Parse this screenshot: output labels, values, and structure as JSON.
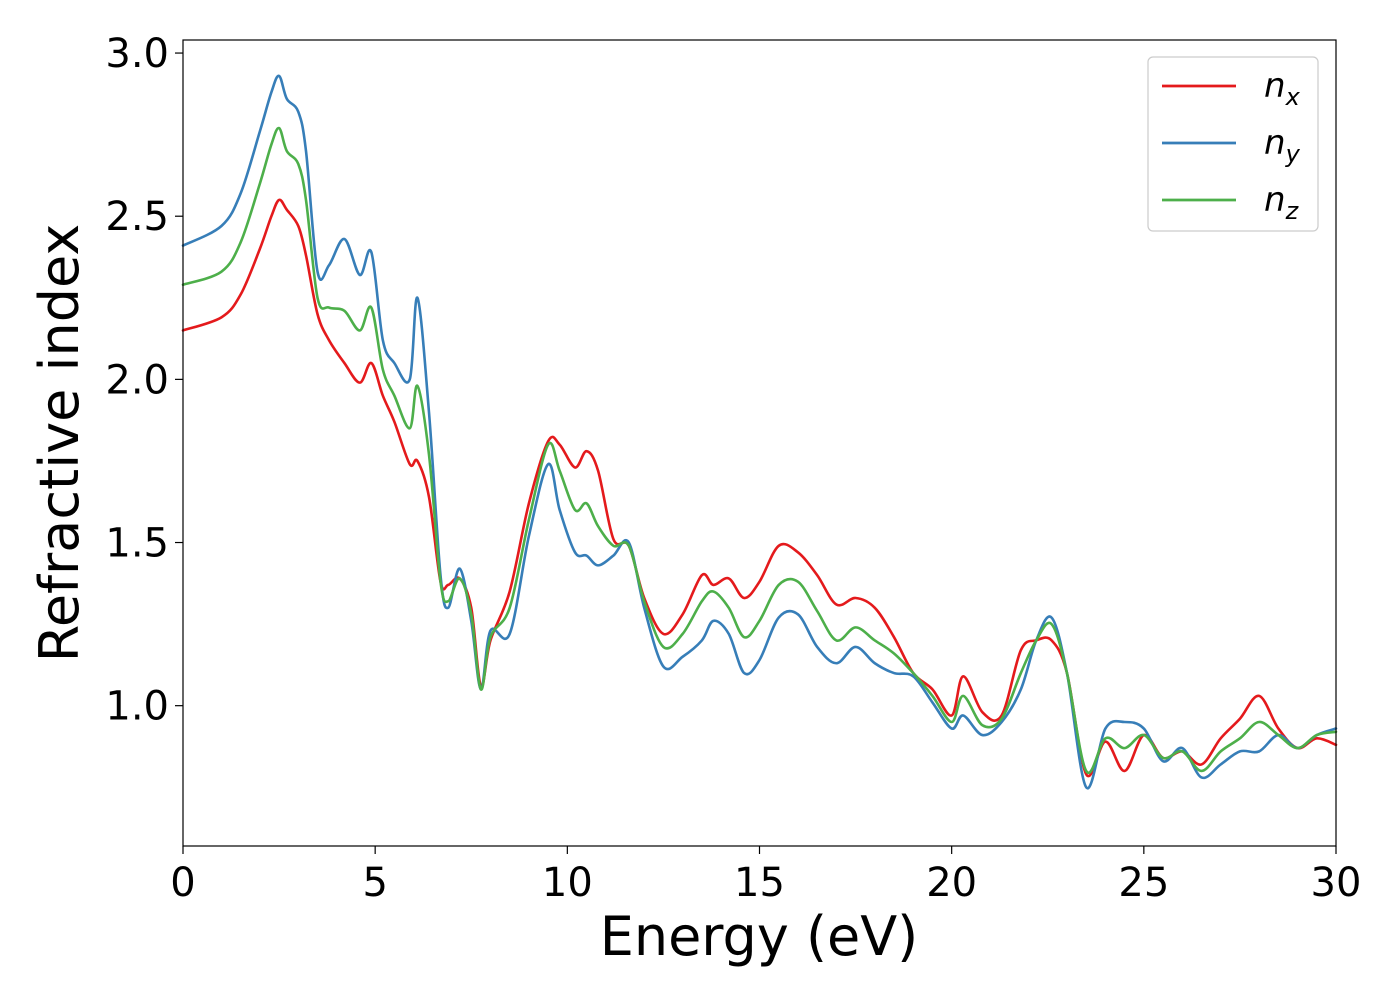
{
  "chart_data": {
    "type": "line",
    "title": "",
    "xlabel": "Energy (eV)",
    "ylabel": "Refractive index",
    "xlim": [
      0,
      30
    ],
    "ylim": [
      0.57,
      3.04
    ],
    "xticks": [
      "0",
      "5",
      "10",
      "15",
      "20",
      "25",
      "30"
    ],
    "yticks": [
      "1.0",
      "1.5",
      "2.0",
      "2.5",
      "3.0"
    ],
    "grid": false,
    "legend_position": "top-right",
    "series": [
      {
        "name": "n",
        "subscript": "x",
        "color": "#e41a1c",
        "x": [
          0,
          1,
          1.5,
          2,
          2.3,
          2.5,
          2.7,
          3.0,
          3.2,
          3.5,
          3.8,
          4.2,
          4.6,
          4.9,
          5.2,
          5.5,
          5.9,
          6.1,
          6.4,
          6.7,
          6.9,
          7.2,
          7.5,
          7.75,
          8.0,
          8.5,
          9.0,
          9.5,
          9.8,
          10.2,
          10.5,
          10.8,
          11.2,
          11.6,
          12.0,
          12.5,
          13.0,
          13.5,
          13.8,
          14.2,
          14.6,
          15.0,
          15.5,
          16.0,
          16.5,
          17.0,
          17.5,
          18.0,
          18.5,
          19.0,
          19.5,
          20.0,
          20.3,
          20.8,
          21.3,
          21.8,
          22.2,
          22.6,
          23.0,
          23.5,
          24.0,
          24.5,
          25.0,
          25.5,
          26.0,
          26.5,
          27.0,
          27.5,
          28.0,
          28.5,
          29.0,
          29.5,
          30.0
        ],
        "y": [
          2.15,
          2.19,
          2.26,
          2.4,
          2.5,
          2.55,
          2.52,
          2.47,
          2.38,
          2.2,
          2.12,
          2.05,
          1.99,
          2.05,
          1.95,
          1.87,
          1.74,
          1.75,
          1.64,
          1.38,
          1.37,
          1.39,
          1.3,
          1.06,
          1.2,
          1.35,
          1.62,
          1.81,
          1.8,
          1.73,
          1.78,
          1.72,
          1.51,
          1.49,
          1.33,
          1.22,
          1.28,
          1.4,
          1.37,
          1.39,
          1.33,
          1.38,
          1.49,
          1.47,
          1.4,
          1.31,
          1.33,
          1.3,
          1.21,
          1.1,
          1.05,
          0.97,
          1.09,
          0.98,
          0.97,
          1.17,
          1.2,
          1.2,
          1.1,
          0.79,
          0.89,
          0.8,
          0.91,
          0.84,
          0.86,
          0.82,
          0.9,
          0.96,
          1.03,
          0.93,
          0.87,
          0.9,
          0.88
        ]
      },
      {
        "name": "n",
        "subscript": "y",
        "color": "#377eb8",
        "x": [
          0,
          1,
          1.5,
          2,
          2.3,
          2.5,
          2.7,
          3.0,
          3.2,
          3.5,
          3.8,
          4.2,
          4.6,
          4.9,
          5.2,
          5.5,
          5.9,
          6.1,
          6.4,
          6.7,
          6.9,
          7.2,
          7.5,
          7.75,
          8.0,
          8.5,
          9.0,
          9.5,
          9.8,
          10.2,
          10.5,
          10.8,
          11.2,
          11.6,
          12.0,
          12.5,
          13.0,
          13.5,
          13.8,
          14.2,
          14.6,
          15.0,
          15.5,
          16.0,
          16.5,
          17.0,
          17.5,
          18.0,
          18.5,
          19.0,
          19.5,
          20.0,
          20.3,
          20.8,
          21.3,
          21.8,
          22.2,
          22.6,
          23.0,
          23.5,
          24.0,
          24.5,
          25.0,
          25.5,
          26.0,
          26.5,
          27.0,
          27.5,
          28.0,
          28.5,
          29.0,
          29.5,
          30.0
        ],
        "y": [
          2.41,
          2.47,
          2.57,
          2.76,
          2.88,
          2.93,
          2.86,
          2.82,
          2.7,
          2.33,
          2.35,
          2.43,
          2.32,
          2.39,
          2.12,
          2.05,
          2.0,
          2.25,
          1.9,
          1.4,
          1.3,
          1.42,
          1.26,
          1.05,
          1.23,
          1.22,
          1.52,
          1.74,
          1.6,
          1.47,
          1.46,
          1.43,
          1.46,
          1.5,
          1.3,
          1.12,
          1.15,
          1.2,
          1.26,
          1.22,
          1.1,
          1.14,
          1.27,
          1.28,
          1.18,
          1.13,
          1.18,
          1.13,
          1.1,
          1.09,
          1.01,
          0.93,
          0.97,
          0.91,
          0.95,
          1.05,
          1.2,
          1.27,
          1.1,
          0.75,
          0.93,
          0.95,
          0.93,
          0.83,
          0.87,
          0.78,
          0.82,
          0.86,
          0.86,
          0.91,
          0.87,
          0.91,
          0.93
        ]
      },
      {
        "name": "n",
        "subscript": "z",
        "color": "#4daf4a",
        "x": [
          0,
          1,
          1.5,
          2,
          2.3,
          2.5,
          2.7,
          3.0,
          3.2,
          3.5,
          3.8,
          4.2,
          4.6,
          4.9,
          5.2,
          5.5,
          5.9,
          6.1,
          6.4,
          6.7,
          6.9,
          7.2,
          7.5,
          7.75,
          8.0,
          8.5,
          9.0,
          9.5,
          9.8,
          10.2,
          10.5,
          10.8,
          11.2,
          11.6,
          12.0,
          12.5,
          13.0,
          13.5,
          13.8,
          14.2,
          14.6,
          15.0,
          15.5,
          16.0,
          16.5,
          17.0,
          17.5,
          18.0,
          18.5,
          19.0,
          19.5,
          20.0,
          20.3,
          20.8,
          21.3,
          21.8,
          22.2,
          22.6,
          23.0,
          23.5,
          24.0,
          24.5,
          25.0,
          25.5,
          26.0,
          26.5,
          27.0,
          27.5,
          28.0,
          28.5,
          29.0,
          29.5,
          30.0
        ],
        "y": [
          2.29,
          2.33,
          2.42,
          2.6,
          2.72,
          2.77,
          2.7,
          2.66,
          2.55,
          2.25,
          2.22,
          2.21,
          2.15,
          2.22,
          2.03,
          1.95,
          1.85,
          1.98,
          1.77,
          1.38,
          1.32,
          1.39,
          1.28,
          1.05,
          1.21,
          1.3,
          1.57,
          1.8,
          1.72,
          1.6,
          1.62,
          1.55,
          1.49,
          1.49,
          1.32,
          1.18,
          1.22,
          1.32,
          1.35,
          1.3,
          1.21,
          1.26,
          1.37,
          1.38,
          1.29,
          1.2,
          1.24,
          1.2,
          1.16,
          1.1,
          1.03,
          0.95,
          1.03,
          0.94,
          0.96,
          1.1,
          1.2,
          1.25,
          1.1,
          0.8,
          0.9,
          0.87,
          0.91,
          0.84,
          0.86,
          0.8,
          0.86,
          0.9,
          0.95,
          0.91,
          0.87,
          0.91,
          0.92
        ]
      }
    ]
  }
}
